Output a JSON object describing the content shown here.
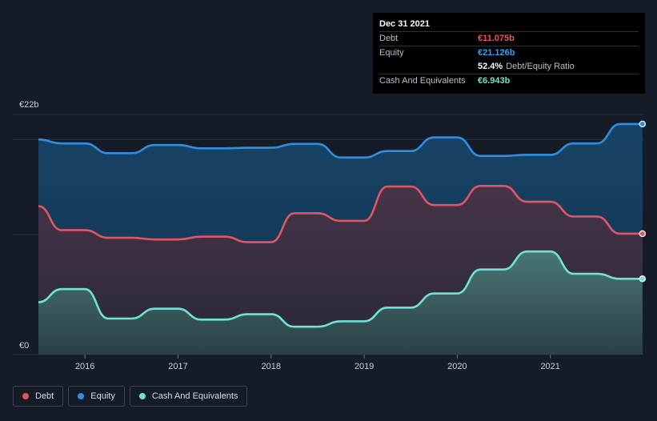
{
  "colors": {
    "debt": "#e05663",
    "equity": "#2f8ee2",
    "cash": "#6fe3d2",
    "background": "#151b27"
  },
  "tooltip": {
    "date": "Dec 31 2021",
    "rows": [
      {
        "label": "Debt",
        "value": "€11.075b",
        "color": "#e8565f"
      },
      {
        "label": "Equity",
        "value": "€21.126b",
        "color": "#3aa0f0"
      },
      {
        "label": "",
        "value": "52.4%",
        "suffix": "Debt/Equity Ratio",
        "color": "#ffffff"
      },
      {
        "label": "Cash And Equivalents",
        "value": "€6.943b",
        "color": "#6fe3d2"
      }
    ]
  },
  "legend": [
    {
      "label": "Debt",
      "color": "#e05663"
    },
    {
      "label": "Equity",
      "color": "#2f8ee2"
    },
    {
      "label": "Cash And Equivalents",
      "color": "#6fe3d2"
    }
  ],
  "chart_data": {
    "type": "area",
    "y_unit": "€b",
    "ylim": [
      0,
      22
    ],
    "y_ticks": [
      {
        "value": 22,
        "label": "€22b"
      },
      {
        "value": 0,
        "label": "€0"
      }
    ],
    "x_ticks": [
      "2016",
      "2017",
      "2018",
      "2019",
      "2020",
      "2021"
    ],
    "xlim": [
      2015.5,
      2022.0
    ],
    "series": [
      {
        "name": "Equity",
        "color": "#2f8ee2",
        "x": [
          2015.5,
          2015.75,
          2016.0,
          2016.25,
          2016.5,
          2016.75,
          2017.0,
          2017.25,
          2017.5,
          2017.75,
          2018.0,
          2018.25,
          2018.5,
          2018.75,
          2019.0,
          2019.25,
          2019.5,
          2019.75,
          2020.0,
          2020.25,
          2020.5,
          2020.75,
          2021.0,
          2021.25,
          2021.5,
          2021.75,
          2021.99
        ],
        "values": [
          19.7,
          19.35,
          19.35,
          18.45,
          18.45,
          19.2,
          19.2,
          18.9,
          18.9,
          18.95,
          18.95,
          19.3,
          19.3,
          18.05,
          18.05,
          18.65,
          18.65,
          19.9,
          19.9,
          18.2,
          18.2,
          18.3,
          18.3,
          19.35,
          19.35,
          21.126,
          21.126
        ]
      },
      {
        "name": "Debt",
        "color": "#e05663",
        "x": [
          2015.5,
          2015.75,
          2016.0,
          2016.25,
          2016.5,
          2016.75,
          2017.0,
          2017.25,
          2017.5,
          2017.75,
          2018.0,
          2018.25,
          2018.5,
          2018.75,
          2019.0,
          2019.25,
          2019.5,
          2019.75,
          2020.0,
          2020.25,
          2020.5,
          2020.75,
          2021.0,
          2021.25,
          2021.5,
          2021.75,
          2021.99
        ],
        "values": [
          13.6,
          11.4,
          11.4,
          10.7,
          10.7,
          10.55,
          10.55,
          10.8,
          10.8,
          10.3,
          10.3,
          12.95,
          12.95,
          12.25,
          12.25,
          15.4,
          15.4,
          13.7,
          13.7,
          15.45,
          15.45,
          14.0,
          14.0,
          12.65,
          12.65,
          11.075,
          11.075
        ]
      },
      {
        "name": "Cash And Equivalents",
        "color": "#6fe3d2",
        "x": [
          2015.5,
          2015.75,
          2016.0,
          2016.25,
          2016.5,
          2016.75,
          2017.0,
          2017.25,
          2017.5,
          2017.75,
          2018.0,
          2018.25,
          2018.5,
          2018.75,
          2019.0,
          2019.25,
          2019.5,
          2019.75,
          2020.0,
          2020.25,
          2020.5,
          2020.75,
          2021.0,
          2021.25,
          2021.5,
          2021.75,
          2021.99
        ],
        "values": [
          4.8,
          6.0,
          6.0,
          3.3,
          3.3,
          4.2,
          4.2,
          3.2,
          3.2,
          3.7,
          3.7,
          2.55,
          2.55,
          3.05,
          3.05,
          4.3,
          4.3,
          5.6,
          5.6,
          7.8,
          7.8,
          9.45,
          9.45,
          7.4,
          7.4,
          6.943,
          6.943
        ]
      }
    ]
  }
}
